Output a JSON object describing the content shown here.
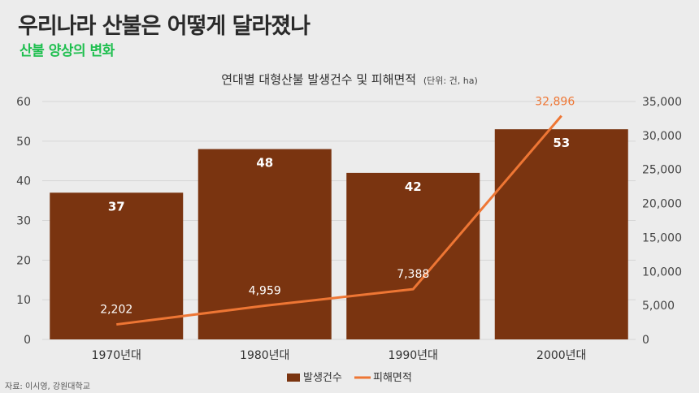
{
  "header": {
    "title": "우리나라 산불은 어떻게 달라졌나",
    "subtitle": "산불 양상의 변화"
  },
  "source": "자료: 이시영, 강원대학교",
  "colors": {
    "bar": "#7a3410",
    "line": "#ee7634",
    "subtitle": "#1fbf4f",
    "background": "#ececec"
  },
  "chart_data": {
    "type": "bar",
    "title": "연대별 대형산불 발생건수 및 피해면적",
    "unit": "(단위: 건, ha)",
    "categories": [
      "1970년대",
      "1980년대",
      "1990년대",
      "2000년대"
    ],
    "series": [
      {
        "name": "발생건수",
        "type": "bar",
        "axis": "left",
        "values": [
          37,
          48,
          42,
          53
        ],
        "labels": [
          "37",
          "48",
          "42",
          "53"
        ]
      },
      {
        "name": "피해면적",
        "type": "line",
        "axis": "right",
        "values": [
          2202,
          4959,
          7388,
          32896
        ],
        "labels": [
          "2,202",
          "4,959",
          "7,388",
          "32,896"
        ]
      }
    ],
    "y_left": {
      "ylim": [
        0,
        60
      ],
      "ticks": [
        "0",
        "10",
        "20",
        "30",
        "40",
        "50",
        "60"
      ]
    },
    "y_right": {
      "ylim": [
        0,
        35000
      ],
      "ticks": [
        "0",
        "5,000",
        "10,000",
        "15,000",
        "20,000",
        "25,000",
        "30,000",
        "35,000"
      ]
    },
    "grid": true,
    "legend_position": "bottom"
  }
}
